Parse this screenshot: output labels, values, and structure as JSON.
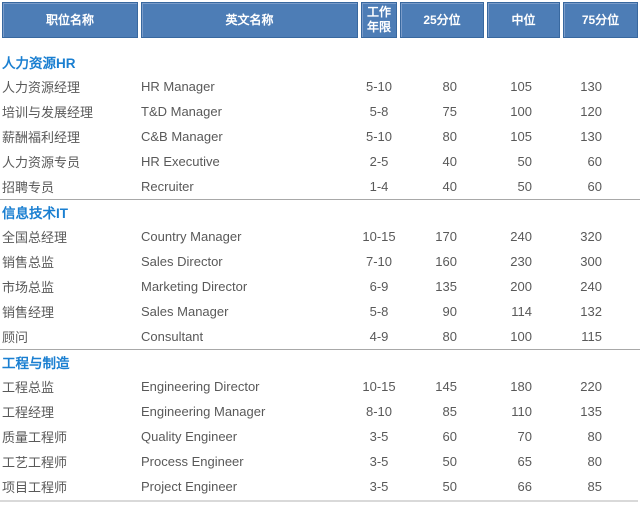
{
  "table": {
    "headers": [
      "职位名称",
      "英文名称",
      "工作年限",
      "25分位",
      "中位",
      "75分位"
    ]
  },
  "sections": [
    {
      "title": "人力资源HR",
      "rows": [
        {
          "name": "人力资源经理",
          "en": "HR Manager",
          "years": "5-10",
          "p25": "80",
          "median": "105",
          "p75": "130"
        },
        {
          "name": "培训与发展经理",
          "en": "T&D Manager",
          "years": "5-8",
          "p25": "75",
          "median": "100",
          "p75": "120"
        },
        {
          "name": "薪酬福利经理",
          "en": "C&B Manager",
          "years": "5-10",
          "p25": "80",
          "median": "105",
          "p75": "130"
        },
        {
          "name": "人力资源专员",
          "en": "HR Executive",
          "years": "2-5",
          "p25": "40",
          "median": "50",
          "p75": "60"
        },
        {
          "name": "招聘专员",
          "en": "Recruiter",
          "years": "1-4",
          "p25": "40",
          "median": "50",
          "p75": "60"
        }
      ]
    },
    {
      "title": "信息技术IT",
      "rows": [
        {
          "name": "全国总经理",
          "en": "Country Manager",
          "years": "10-15",
          "p25": "170",
          "median": "240",
          "p75": "320"
        },
        {
          "name": "销售总监",
          "en": "Sales Director",
          "years": "7-10",
          "p25": "160",
          "median": "230",
          "p75": "300"
        },
        {
          "name": "市场总监",
          "en": "Marketing Director",
          "years": "6-9",
          "p25": "135",
          "median": "200",
          "p75": "240"
        },
        {
          "name": "销售经理",
          "en": "Sales Manager",
          "years": "5-8",
          "p25": "90",
          "median": "114",
          "p75": "132"
        },
        {
          "name": "顾问",
          "en": "Consultant",
          "years": "4-9",
          "p25": "80",
          "median": "100",
          "p75": "115"
        }
      ]
    },
    {
      "title": "工程与制造",
      "rows": [
        {
          "name": "工程总监",
          "en": "Engineering Director",
          "years": "10-15",
          "p25": "145",
          "median": "180",
          "p75": "220"
        },
        {
          "name": "工程经理",
          "en": "Engineering Manager",
          "years": "8-10",
          "p25": "85",
          "median": "110",
          "p75": "135"
        },
        {
          "name": "质量工程师",
          "en": "Quality Engineer",
          "years": "3-5",
          "p25": "60",
          "median": "70",
          "p75": "80"
        },
        {
          "name": "工艺工程师",
          "en": "Process Engineer",
          "years": "3-5",
          "p25": "50",
          "median": "65",
          "p75": "80"
        },
        {
          "name": "项目工程师",
          "en": "Project Engineer",
          "years": "3-5",
          "p25": "50",
          "median": "66",
          "p75": "85"
        }
      ]
    }
  ],
  "colors": {
    "header_bg": "#4d7db6",
    "header_text": "#ffffff",
    "section_title_text": "#1a7fd1",
    "row_text": "#595959",
    "section_divider": "#a8a8a8",
    "bottom_divider": "#d9d9d9"
  }
}
